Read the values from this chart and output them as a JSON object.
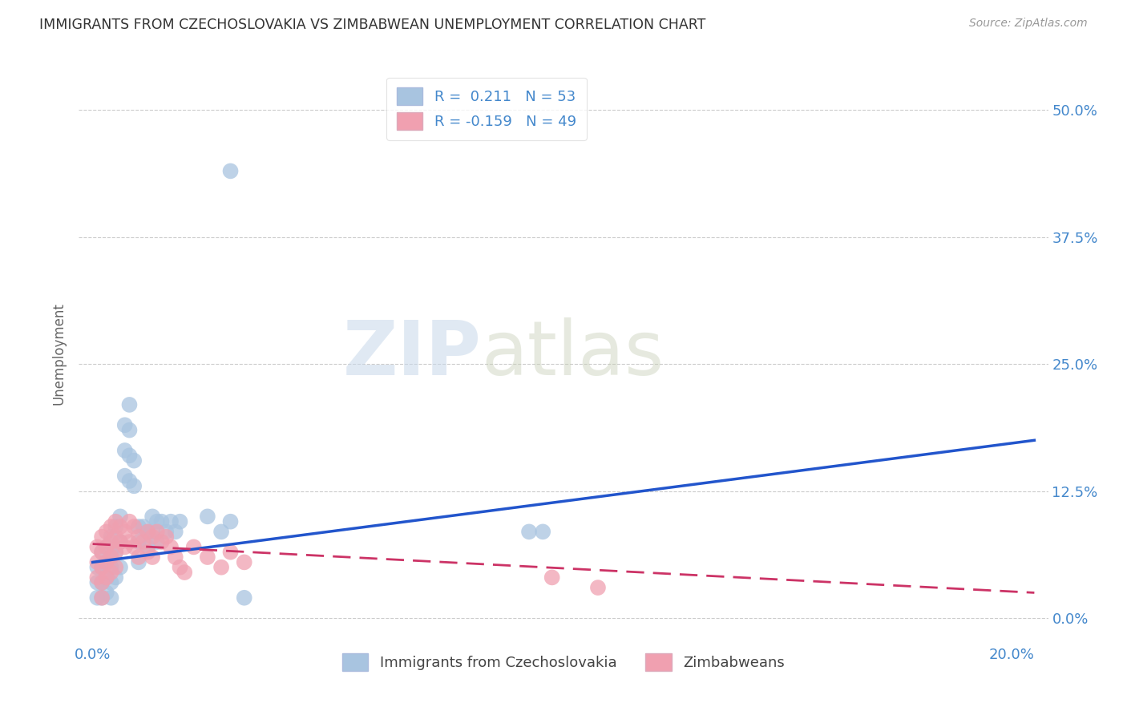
{
  "title": "IMMIGRANTS FROM CZECHOSLOVAKIA VS ZIMBABWEAN UNEMPLOYMENT CORRELATION CHART",
  "source": "Source: ZipAtlas.com",
  "xlabel_ticks": [
    "0.0%",
    "",
    "",
    "",
    "20.0%"
  ],
  "xlabel_vals": [
    0.0,
    0.05,
    0.1,
    0.15,
    0.2
  ],
  "ylabel": "Unemployment",
  "ylabel_ticks": [
    "0.0%",
    "12.5%",
    "25.0%",
    "37.5%",
    "50.0%"
  ],
  "ylabel_vals": [
    0.0,
    0.125,
    0.25,
    0.375,
    0.5
  ],
  "xlim": [
    -0.003,
    0.208
  ],
  "ylim": [
    -0.025,
    0.545
  ],
  "blue_R": 0.211,
  "blue_N": 53,
  "pink_R": -0.159,
  "pink_N": 49,
  "blue_color": "#a8c4e0",
  "pink_color": "#f0a0b0",
  "blue_line_color": "#2255cc",
  "pink_line_color": "#cc3366",
  "legend_label_blue": "Immigrants from Czechoslovakia",
  "legend_label_pink": "Zimbabweans",
  "watermark_zip": "ZIP",
  "watermark_atlas": "atlas",
  "background_color": "#ffffff",
  "grid_color": "#cccccc",
  "title_color": "#333333",
  "axis_label_color": "#4488cc",
  "blue_x": [
    0.001,
    0.001,
    0.001,
    0.002,
    0.002,
    0.002,
    0.002,
    0.003,
    0.003,
    0.003,
    0.003,
    0.004,
    0.004,
    0.004,
    0.004,
    0.004,
    0.005,
    0.005,
    0.005,
    0.006,
    0.006,
    0.006,
    0.007,
    0.007,
    0.007,
    0.008,
    0.008,
    0.008,
    0.008,
    0.009,
    0.009,
    0.01,
    0.01,
    0.01,
    0.011,
    0.012,
    0.012,
    0.013,
    0.013,
    0.014,
    0.014,
    0.015,
    0.016,
    0.017,
    0.018,
    0.019,
    0.025,
    0.028,
    0.03,
    0.033,
    0.095,
    0.098,
    0.03
  ],
  "blue_y": [
    0.05,
    0.035,
    0.02,
    0.065,
    0.05,
    0.035,
    0.02,
    0.07,
    0.055,
    0.04,
    0.025,
    0.08,
    0.065,
    0.05,
    0.035,
    0.02,
    0.09,
    0.065,
    0.04,
    0.1,
    0.075,
    0.05,
    0.19,
    0.165,
    0.14,
    0.21,
    0.185,
    0.16,
    0.135,
    0.155,
    0.13,
    0.09,
    0.075,
    0.055,
    0.09,
    0.085,
    0.07,
    0.1,
    0.085,
    0.095,
    0.075,
    0.095,
    0.085,
    0.095,
    0.085,
    0.095,
    0.1,
    0.085,
    0.095,
    0.02,
    0.085,
    0.085,
    0.44
  ],
  "pink_x": [
    0.001,
    0.001,
    0.001,
    0.002,
    0.002,
    0.002,
    0.002,
    0.002,
    0.003,
    0.003,
    0.003,
    0.003,
    0.004,
    0.004,
    0.004,
    0.004,
    0.005,
    0.005,
    0.005,
    0.005,
    0.006,
    0.006,
    0.007,
    0.007,
    0.008,
    0.008,
    0.009,
    0.009,
    0.01,
    0.01,
    0.011,
    0.012,
    0.012,
    0.013,
    0.013,
    0.014,
    0.015,
    0.016,
    0.017,
    0.018,
    0.019,
    0.02,
    0.022,
    0.025,
    0.028,
    0.03,
    0.033,
    0.1,
    0.11
  ],
  "pink_y": [
    0.07,
    0.055,
    0.04,
    0.08,
    0.065,
    0.05,
    0.035,
    0.02,
    0.085,
    0.07,
    0.055,
    0.04,
    0.09,
    0.075,
    0.06,
    0.045,
    0.095,
    0.08,
    0.065,
    0.05,
    0.09,
    0.075,
    0.085,
    0.07,
    0.095,
    0.075,
    0.09,
    0.07,
    0.08,
    0.06,
    0.075,
    0.085,
    0.065,
    0.08,
    0.06,
    0.085,
    0.075,
    0.08,
    0.07,
    0.06,
    0.05,
    0.045,
    0.07,
    0.06,
    0.05,
    0.065,
    0.055,
    0.04,
    0.03
  ],
  "blue_line_x": [
    0.0,
    0.205
  ],
  "blue_line_y": [
    0.055,
    0.175
  ],
  "pink_line_x": [
    0.0,
    0.205
  ],
  "pink_line_y": [
    0.073,
    0.025
  ]
}
